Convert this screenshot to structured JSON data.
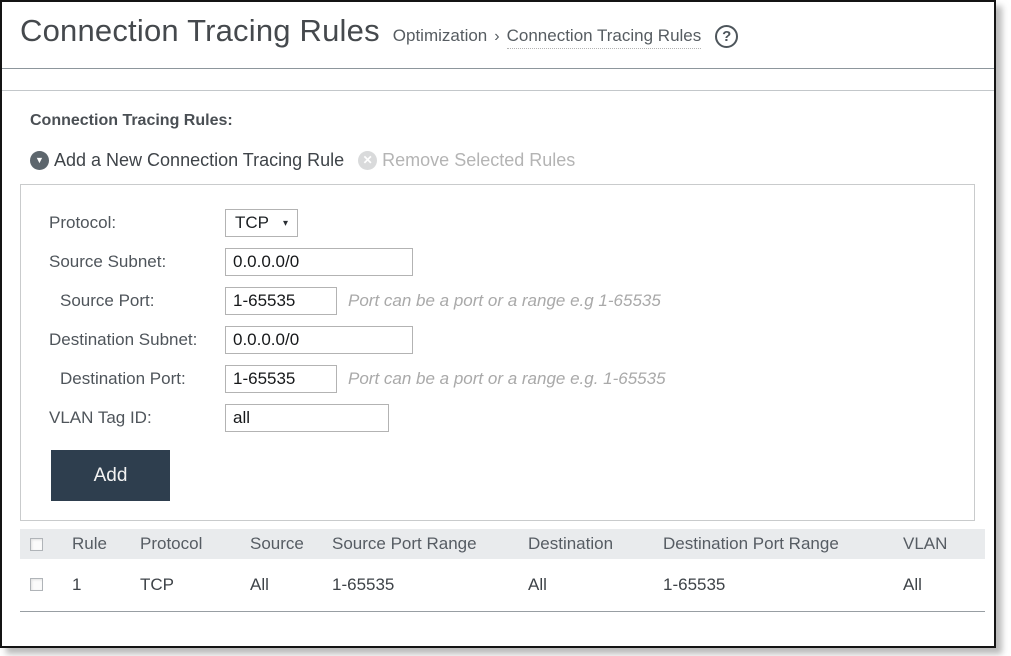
{
  "header": {
    "title": "Connection Tracing Rules",
    "breadcrumb": {
      "section": "Optimization",
      "separator": "›",
      "current": "Connection Tracing Rules"
    },
    "help_glyph": "?"
  },
  "section": {
    "heading": "Connection Tracing Rules:",
    "actions": {
      "add_rule_label": "Add a New Connection Tracing Rule",
      "add_icon_glyph": "▼",
      "remove_rules_label": "Remove Selected Rules",
      "remove_icon_glyph": "✕"
    }
  },
  "form": {
    "protocol": {
      "label": "Protocol:",
      "value": "TCP",
      "arrow_glyph": "▾"
    },
    "source_subnet": {
      "label": "Source Subnet:",
      "value": "0.0.0.0/0"
    },
    "source_port": {
      "label": "Source Port:",
      "value": "1-65535",
      "hint": "Port can be a port or a range e.g 1-65535"
    },
    "destination_subnet": {
      "label": "Destination Subnet:",
      "value": "0.0.0.0/0"
    },
    "destination_port": {
      "label": "Destination Port:",
      "value": "1-65535",
      "hint": "Port can be a port or a range e.g. 1-65535"
    },
    "vlan_tag": {
      "label": "VLAN Tag ID:",
      "value": "all"
    },
    "add_button_label": "Add"
  },
  "table": {
    "columns": {
      "rule": "Rule",
      "protocol": "Protocol",
      "source": "Source",
      "source_port_range": "Source Port Range",
      "destination": "Destination",
      "destination_port_range": "Destination Port Range",
      "vlan": "VLAN"
    },
    "rows": [
      {
        "rule": "1",
        "protocol": "TCP",
        "source": "All",
        "source_port_range": "1-65535",
        "destination": "All",
        "destination_port_range": "1-65535",
        "vlan": "All"
      }
    ]
  },
  "colors": {
    "add_button_bg": "#2e3e4e",
    "table_header_bg": "#e9ebed",
    "disabled_text": "#b4b4b4",
    "icon_circle": "#5d666d"
  }
}
